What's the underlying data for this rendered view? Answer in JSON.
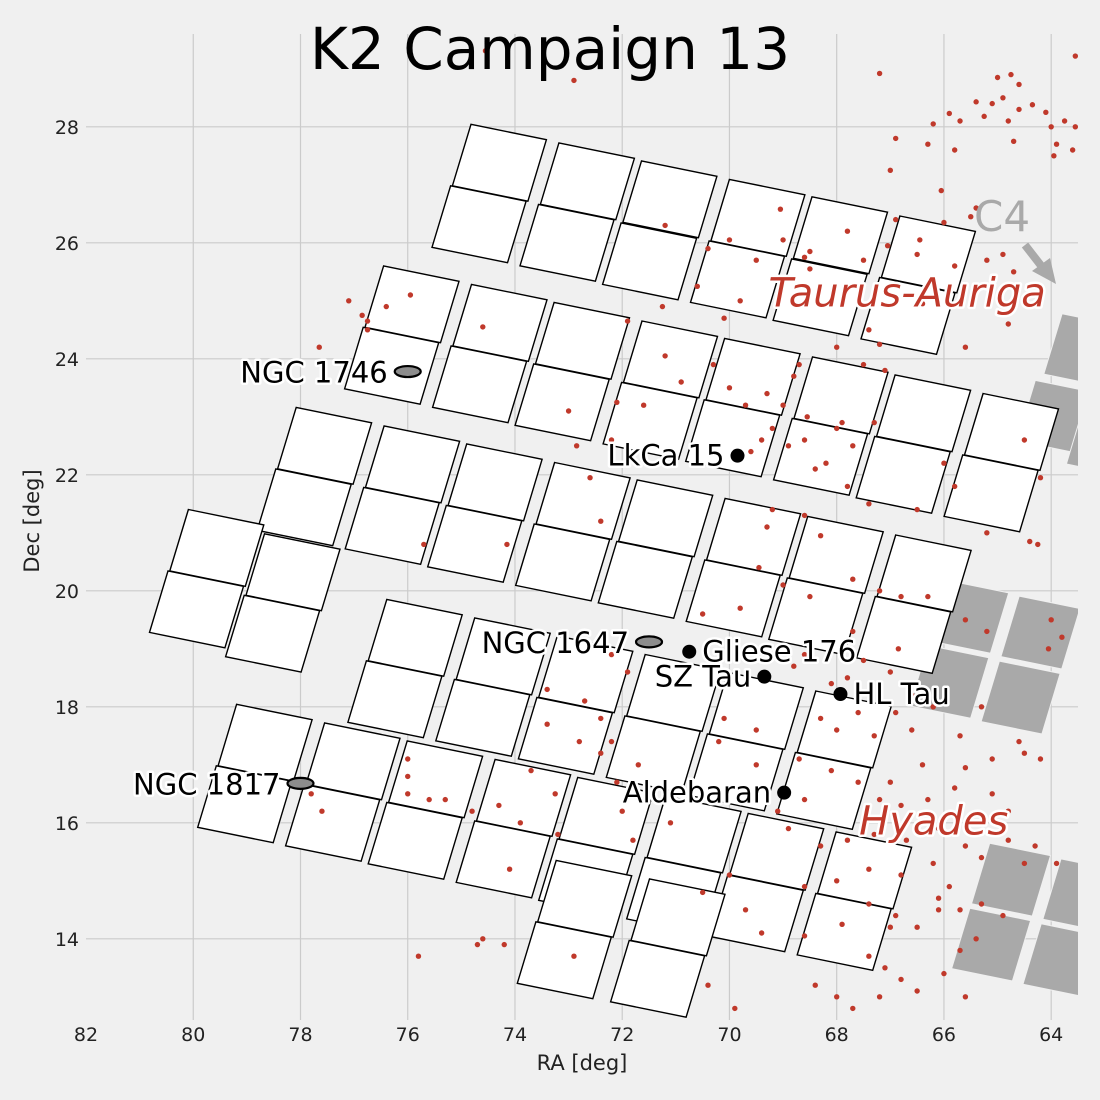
{
  "chart_data": {
    "type": "scatter",
    "title": "K2 Campaign 13",
    "xlabel": "RA [deg]",
    "ylabel": "Dec [deg]",
    "xlim": [
      82,
      63.5
    ],
    "ylim": [
      12.6,
      29.6
    ],
    "x_ticks": [
      "82",
      "80",
      "78",
      "76",
      "74",
      "72",
      "70",
      "68",
      "66",
      "64"
    ],
    "y_ticks": [
      "14",
      "16",
      "18",
      "20",
      "22",
      "24",
      "26",
      "28"
    ],
    "grid": true,
    "fov_modules": [
      {
        "ra": 74.29,
        "dec": 27.38
      },
      {
        "ra": 72.65,
        "dec": 27.06
      },
      {
        "ra": 74.67,
        "dec": 26.32
      },
      {
        "ra": 73.03,
        "dec": 26.0
      },
      {
        "ra": 71.11,
        "dec": 26.75
      },
      {
        "ra": 69.47,
        "dec": 26.43
      },
      {
        "ra": 71.49,
        "dec": 25.68
      },
      {
        "ra": 69.85,
        "dec": 25.37
      },
      {
        "ra": 67.93,
        "dec": 26.13
      },
      {
        "ra": 66.29,
        "dec": 25.8
      },
      {
        "ra": 68.31,
        "dec": 25.06
      },
      {
        "ra": 66.67,
        "dec": 24.74
      },
      {
        "ra": 75.92,
        "dec": 24.94
      },
      {
        "ra": 74.28,
        "dec": 24.62
      },
      {
        "ra": 76.3,
        "dec": 23.88
      },
      {
        "ra": 74.66,
        "dec": 23.56
      },
      {
        "ra": 72.74,
        "dec": 24.31
      },
      {
        "ra": 71.1,
        "dec": 23.99
      },
      {
        "ra": 73.12,
        "dec": 23.25
      },
      {
        "ra": 71.48,
        "dec": 22.93
      },
      {
        "ra": 69.56,
        "dec": 23.69
      },
      {
        "ra": 67.92,
        "dec": 23.37
      },
      {
        "ra": 69.94,
        "dec": 22.63
      },
      {
        "ra": 68.3,
        "dec": 22.31
      },
      {
        "ra": 66.38,
        "dec": 23.06
      },
      {
        "ra": 64.74,
        "dec": 22.74
      },
      {
        "ra": 66.76,
        "dec": 22.0
      },
      {
        "ra": 65.12,
        "dec": 21.68
      },
      {
        "ra": 77.55,
        "dec": 22.5
      },
      {
        "ra": 75.91,
        "dec": 22.18
      },
      {
        "ra": 77.93,
        "dec": 21.44
      },
      {
        "ra": 76.29,
        "dec": 21.12
      },
      {
        "ra": 74.37,
        "dec": 21.87
      },
      {
        "ra": 72.73,
        "dec": 21.55
      },
      {
        "ra": 74.75,
        "dec": 20.81
      },
      {
        "ra": 73.11,
        "dec": 20.49
      },
      {
        "ra": 71.19,
        "dec": 21.25
      },
      {
        "ra": 69.55,
        "dec": 20.93
      },
      {
        "ra": 71.57,
        "dec": 20.19
      },
      {
        "ra": 69.93,
        "dec": 19.87
      },
      {
        "ra": 68.01,
        "dec": 20.62
      },
      {
        "ra": 66.37,
        "dec": 20.3
      },
      {
        "ra": 68.39,
        "dec": 19.56
      },
      {
        "ra": 66.75,
        "dec": 19.24
      },
      {
        "ra": 79.56,
        "dec": 20.74
      },
      {
        "ra": 78.14,
        "dec": 20.32
      },
      {
        "ra": 79.94,
        "dec": 19.68
      },
      {
        "ra": 78.52,
        "dec": 19.26
      },
      {
        "ra": 75.86,
        "dec": 19.19
      },
      {
        "ra": 74.22,
        "dec": 18.87
      },
      {
        "ra": 76.24,
        "dec": 18.13
      },
      {
        "ra": 74.6,
        "dec": 17.81
      },
      {
        "ra": 72.68,
        "dec": 18.56
      },
      {
        "ra": 71.04,
        "dec": 18.24
      },
      {
        "ra": 73.06,
        "dec": 17.5
      },
      {
        "ra": 71.42,
        "dec": 17.18
      },
      {
        "ra": 69.5,
        "dec": 17.93
      },
      {
        "ra": 67.86,
        "dec": 17.61
      },
      {
        "ra": 69.88,
        "dec": 16.87
      },
      {
        "ra": 68.24,
        "dec": 16.55
      },
      {
        "ra": 78.66,
        "dec": 17.38
      },
      {
        "ra": 77.02,
        "dec": 17.06
      },
      {
        "ra": 79.04,
        "dec": 16.32
      },
      {
        "ra": 77.4,
        "dec": 16.0
      },
      {
        "ra": 75.48,
        "dec": 16.75
      },
      {
        "ra": 73.84,
        "dec": 16.43
      },
      {
        "ra": 75.86,
        "dec": 15.69
      },
      {
        "ra": 74.22,
        "dec": 15.37
      },
      {
        "ra": 72.3,
        "dec": 16.12
      },
      {
        "ra": 70.66,
        "dec": 15.8
      },
      {
        "ra": 72.68,
        "dec": 15.06
      },
      {
        "ra": 71.04,
        "dec": 14.74
      },
      {
        "ra": 69.12,
        "dec": 15.5
      },
      {
        "ra": 67.48,
        "dec": 15.18
      },
      {
        "ra": 69.5,
        "dec": 14.44
      },
      {
        "ra": 67.86,
        "dec": 14.12
      },
      {
        "ra": 72.7,
        "dec": 14.69
      },
      {
        "ra": 70.96,
        "dec": 14.37
      },
      {
        "ra": 73.08,
        "dec": 13.63
      },
      {
        "ra": 71.34,
        "dec": 13.31
      }
    ],
    "c4_modules": [
      {
        "ra": 63.4,
        "dec": 24.15
      },
      {
        "ra": 63.9,
        "dec": 23.0
      },
      {
        "ra": 62.98,
        "dec": 22.6
      },
      {
        "ra": 65.53,
        "dec": 19.55
      },
      {
        "ra": 64.2,
        "dec": 19.28
      },
      {
        "ra": 65.9,
        "dec": 18.43
      },
      {
        "ra": 64.57,
        "dec": 18.16
      },
      {
        "ra": 64.75,
        "dec": 15.02
      },
      {
        "ra": 63.42,
        "dec": 14.75
      },
      {
        "ra": 65.12,
        "dec": 13.9
      },
      {
        "ra": 63.79,
        "dec": 13.63
      }
    ],
    "stars": [
      [
        74.55,
        29.31
      ],
      [
        63.55,
        29.22
      ],
      [
        65.0,
        28.85
      ],
      [
        64.75,
        28.9
      ],
      [
        64.6,
        28.73
      ],
      [
        67.2,
        28.92
      ],
      [
        72.9,
        28.8
      ],
      [
        65.1,
        28.4
      ],
      [
        64.9,
        28.5
      ],
      [
        64.6,
        28.3
      ],
      [
        64.35,
        28.38
      ],
      [
        64.1,
        28.25
      ],
      [
        65.4,
        28.43
      ],
      [
        65.9,
        28.23
      ],
      [
        66.2,
        28.05
      ],
      [
        65.7,
        28.1
      ],
      [
        65.25,
        28.18
      ],
      [
        64.8,
        28.1
      ],
      [
        64.0,
        28.0
      ],
      [
        63.75,
        28.1
      ],
      [
        63.55,
        28.0
      ],
      [
        66.9,
        27.8
      ],
      [
        66.3,
        27.7
      ],
      [
        65.8,
        27.6
      ],
      [
        64.7,
        27.75
      ],
      [
        63.9,
        27.7
      ],
      [
        63.6,
        27.6
      ],
      [
        63.95,
        27.5
      ],
      [
        67.0,
        27.25
      ],
      [
        69.05,
        26.58
      ],
      [
        71.2,
        26.3
      ],
      [
        66.05,
        26.9
      ],
      [
        65.4,
        26.6
      ],
      [
        65.5,
        26.45
      ],
      [
        66.9,
        26.4
      ],
      [
        66.45,
        26.05
      ],
      [
        66.0,
        26.35
      ],
      [
        66.5,
        25.8
      ],
      [
        64.9,
        25.8
      ],
      [
        65.2,
        25.7
      ],
      [
        65.8,
        25.6
      ],
      [
        64.7,
        25.5
      ],
      [
        68.6,
        25.75
      ],
      [
        68.5,
        25.55
      ],
      [
        67.8,
        26.2
      ],
      [
        67.5,
        25.7
      ],
      [
        67.05,
        25.95
      ],
      [
        69.0,
        26.05
      ],
      [
        68.5,
        25.85
      ],
      [
        70.4,
        25.9
      ],
      [
        70.0,
        26.05
      ],
      [
        69.5,
        25.7
      ],
      [
        71.25,
        24.9
      ],
      [
        69.8,
        25.0
      ],
      [
        70.1,
        24.7
      ],
      [
        70.6,
        25.25
      ],
      [
        66.95,
        25.25
      ],
      [
        66.4,
        24.95
      ],
      [
        67.4,
        24.5
      ],
      [
        67.2,
        24.25
      ],
      [
        68.0,
        24.2
      ],
      [
        67.5,
        23.9
      ],
      [
        67.1,
        23.8
      ],
      [
        68.7,
        23.9
      ],
      [
        68.8,
        23.7
      ],
      [
        69.3,
        23.4
      ],
      [
        69.7,
        23.2
      ],
      [
        70.0,
        23.5
      ],
      [
        70.3,
        23.9
      ],
      [
        69.0,
        23.2
      ],
      [
        68.55,
        23.0
      ],
      [
        68.0,
        22.8
      ],
      [
        67.9,
        22.9
      ],
      [
        68.6,
        22.6
      ],
      [
        68.9,
        22.5
      ],
      [
        69.2,
        22.8
      ],
      [
        69.6,
        22.4
      ],
      [
        69.4,
        22.6
      ],
      [
        68.2,
        22.2
      ],
      [
        67.7,
        22.5
      ],
      [
        67.3,
        22.9
      ],
      [
        68.4,
        22.1
      ],
      [
        67.8,
        21.8
      ],
      [
        67.4,
        21.5
      ],
      [
        68.6,
        21.3
      ],
      [
        69.2,
        21.4
      ],
      [
        69.3,
        21.1
      ],
      [
        68.3,
        20.95
      ],
      [
        65.6,
        24.2
      ],
      [
        64.8,
        24.6
      ],
      [
        64.5,
        22.6
      ],
      [
        66.0,
        22.2
      ],
      [
        65.8,
        21.8
      ],
      [
        64.2,
        21.95
      ],
      [
        66.5,
        21.4
      ],
      [
        65.2,
        21.0
      ],
      [
        64.4,
        20.85
      ],
      [
        64.25,
        20.8
      ],
      [
        72.4,
        21.2
      ],
      [
        75.7,
        20.8
      ],
      [
        74.15,
        20.8
      ],
      [
        74.6,
        24.55
      ],
      [
        75.95,
        25.1
      ],
      [
        76.4,
        24.9
      ],
      [
        76.75,
        24.5
      ],
      [
        76.85,
        24.75
      ],
      [
        77.1,
        25.0
      ],
      [
        77.65,
        24.2
      ],
      [
        76.75,
        24.65
      ],
      [
        71.9,
        24.65
      ],
      [
        71.2,
        24.05
      ],
      [
        70.9,
        23.6
      ],
      [
        72.1,
        23.25
      ],
      [
        73.0,
        23.1
      ],
      [
        71.6,
        23.2
      ],
      [
        72.2,
        22.6
      ],
      [
        72.85,
        22.5
      ],
      [
        72.6,
        21.95
      ],
      [
        69.45,
        20.4
      ],
      [
        69.0,
        20.1
      ],
      [
        69.8,
        19.7
      ],
      [
        70.5,
        19.6
      ],
      [
        68.5,
        19.9
      ],
      [
        67.7,
        20.2
      ],
      [
        67.2,
        20.0
      ],
      [
        66.8,
        19.9
      ],
      [
        66.3,
        19.9
      ],
      [
        65.6,
        19.5
      ],
      [
        65.2,
        19.3
      ],
      [
        64.0,
        19.5
      ],
      [
        63.8,
        19.2
      ],
      [
        64.05,
        19.0
      ],
      [
        66.85,
        19.0
      ],
      [
        67.7,
        19.3
      ],
      [
        68.6,
        18.9
      ],
      [
        68.8,
        18.7
      ],
      [
        67.5,
        18.8
      ],
      [
        67.0,
        18.6
      ],
      [
        67.8,
        18.5
      ],
      [
        68.1,
        18.4
      ],
      [
        66.6,
        18.2
      ],
      [
        66.2,
        18.0
      ],
      [
        66.9,
        17.9
      ],
      [
        67.6,
        17.9
      ],
      [
        68.3,
        17.8
      ],
      [
        68.0,
        17.6
      ],
      [
        67.3,
        17.5
      ],
      [
        66.6,
        17.6
      ],
      [
        65.3,
        18.0
      ],
      [
        65.7,
        17.5
      ],
      [
        64.6,
        17.4
      ],
      [
        64.5,
        17.2
      ],
      [
        64.2,
        17.1
      ],
      [
        65.1,
        17.1
      ],
      [
        65.6,
        16.95
      ],
      [
        66.4,
        17.0
      ],
      [
        67.0,
        16.7
      ],
      [
        67.6,
        16.7
      ],
      [
        68.7,
        17.1
      ],
      [
        68.1,
        16.9
      ],
      [
        67.2,
        16.4
      ],
      [
        66.8,
        16.3
      ],
      [
        66.3,
        16.4
      ],
      [
        65.8,
        16.6
      ],
      [
        65.1,
        16.5
      ],
      [
        64.8,
        16.2
      ],
      [
        68.6,
        16.4
      ],
      [
        69.1,
        16.2
      ],
      [
        68.9,
        15.9
      ],
      [
        68.3,
        15.6
      ],
      [
        67.8,
        15.7
      ],
      [
        67.3,
        15.8
      ],
      [
        66.7,
        15.7
      ],
      [
        66.1,
        15.9
      ],
      [
        65.6,
        15.6
      ],
      [
        65.3,
        15.4
      ],
      [
        64.8,
        15.7
      ],
      [
        64.3,
        15.6
      ],
      [
        63.9,
        15.3
      ],
      [
        66.2,
        15.3
      ],
      [
        66.8,
        15.1
      ],
      [
        67.4,
        15.2
      ],
      [
        68.0,
        15.0
      ],
      [
        68.6,
        14.9
      ],
      [
        69.7,
        14.5
      ],
      [
        67.4,
        14.6
      ],
      [
        66.9,
        14.4
      ],
      [
        66.5,
        14.2
      ],
      [
        66.1,
        14.7
      ],
      [
        65.7,
        14.5
      ],
      [
        65.3,
        14.6
      ],
      [
        64.9,
        14.4
      ],
      [
        67.0,
        14.2
      ],
      [
        67.9,
        14.25
      ],
      [
        68.6,
        14.05
      ],
      [
        69.4,
        14.1
      ],
      [
        70.0,
        15.1
      ],
      [
        70.5,
        14.8
      ],
      [
        71.1,
        16.0
      ],
      [
        71.8,
        15.7
      ],
      [
        72.0,
        16.2
      ],
      [
        72.1,
        16.7
      ],
      [
        73.25,
        16.5
      ],
      [
        73.7,
        16.9
      ],
      [
        74.3,
        16.3
      ],
      [
        73.9,
        16.0
      ],
      [
        73.2,
        15.8
      ],
      [
        74.8,
        16.2
      ],
      [
        75.3,
        16.4
      ],
      [
        75.6,
        16.4
      ],
      [
        74.1,
        15.2
      ],
      [
        76.0,
        16.5
      ],
      [
        77.6,
        16.2
      ],
      [
        77.8,
        16.5
      ],
      [
        76.0,
        16.8
      ],
      [
        76.0,
        17.1
      ],
      [
        72.2,
        18.9
      ],
      [
        71.9,
        18.6
      ],
      [
        72.7,
        18.1
      ],
      [
        73.4,
        18.3
      ],
      [
        72.4,
        17.8
      ],
      [
        73.4,
        17.7
      ],
      [
        72.8,
        17.4
      ],
      [
        72.2,
        17.4
      ],
      [
        72.4,
        17.2
      ],
      [
        70.1,
        17.8
      ],
      [
        69.5,
        17.6
      ],
      [
        70.2,
        17.4
      ],
      [
        69.5,
        17.0
      ],
      [
        71.7,
        17.0
      ],
      [
        74.6,
        14.0
      ],
      [
        74.7,
        13.9
      ],
      [
        74.2,
        13.9
      ],
      [
        75.8,
        13.7
      ],
      [
        72.9,
        13.7
      ],
      [
        70.4,
        13.2
      ],
      [
        69.9,
        12.8
      ],
      [
        68.4,
        13.2
      ],
      [
        68.0,
        13.0
      ],
      [
        67.7,
        12.8
      ],
      [
        67.2,
        13.0
      ],
      [
        66.8,
        13.3
      ],
      [
        66.5,
        13.1
      ],
      [
        66.0,
        13.4
      ],
      [
        65.6,
        13.0
      ],
      [
        67.1,
        13.5
      ],
      [
        67.4,
        13.7
      ],
      [
        65.7,
        13.8
      ],
      [
        65.4,
        14.0
      ],
      [
        66.1,
        14.5
      ],
      [
        65.9,
        14.9
      ],
      [
        64.5,
        15.3
      ]
    ],
    "clusters": [
      {
        "label": "NGC 1746",
        "ra": 76.0,
        "dec": 23.78
      },
      {
        "label": "NGC 1647",
        "ra": 71.5,
        "dec": 19.12
      },
      {
        "label": "NGC 1817",
        "ra": 78.0,
        "dec": 16.68
      }
    ],
    "points": [
      {
        "label": "LkCa 15",
        "ra": 69.85,
        "dec": 22.33
      },
      {
        "label": "Gliese 176",
        "ra": 70.75,
        "dec": 18.95
      },
      {
        "label": "SZ Tau",
        "ra": 69.35,
        "dec": 18.52
      },
      {
        "label": "HL Tau",
        "ra": 67.93,
        "dec": 18.22
      },
      {
        "label": "Aldebaran",
        "ra": 68.98,
        "dec": 16.52
      }
    ],
    "regions": [
      {
        "label": "Taurus-Auriga",
        "ra": 64.1,
        "dec": 24.9
      },
      {
        "label": "Hyades",
        "ra": 64.8,
        "dec": 15.8
      }
    ],
    "c4_label": "C4"
  }
}
